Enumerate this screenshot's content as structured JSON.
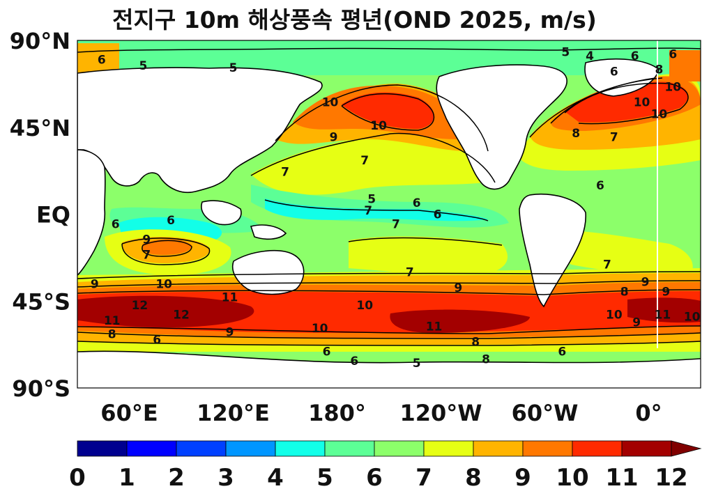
{
  "title": "전지구 10m 해상풍속 평년(OND 2025, m/s)",
  "chart_data": {
    "type": "heatmap",
    "title": "전지구 10m 해상풍속 평년(OND 2025, m/s)",
    "projection": "equirectangular",
    "lon_range": [
      30,
      390
    ],
    "lat_range": [
      -90,
      90
    ],
    "lat_tick_labels": [
      "90°N",
      "45°N",
      "EQ",
      "45°S",
      "90°S"
    ],
    "lon_tick_labels": [
      "60°E",
      "120°E",
      "180°",
      "120°W",
      "60°W",
      "0°"
    ],
    "units": "m/s",
    "colorbar": {
      "levels": [
        0,
        1,
        2,
        3,
        4,
        5,
        6,
        7,
        8,
        9,
        10,
        11,
        12
      ],
      "tick_labels": [
        "0",
        "1",
        "2",
        "3",
        "4",
        "5",
        "6",
        "7",
        "8",
        "9",
        "10",
        "11",
        "12"
      ],
      "colors": [
        "#00008f",
        "#0000ff",
        "#0040ff",
        "#0096ff",
        "#12ffe8",
        "#5cff96",
        "#8cff6a",
        "#e6ff14",
        "#ffb400",
        "#ff7800",
        "#ff2a00",
        "#a30000"
      ],
      "extend": "max",
      "extend_color": "#800000"
    },
    "contour_labels": [
      {
        "lon": 44,
        "lat": 80,
        "text": "6"
      },
      {
        "lon": 68,
        "lat": 77,
        "text": "5"
      },
      {
        "lon": 120,
        "lat": 76,
        "text": "5"
      },
      {
        "lon": 312,
        "lat": 84,
        "text": "5"
      },
      {
        "lon": 326,
        "lat": 82,
        "text": "4"
      },
      {
        "lon": 352,
        "lat": 82,
        "text": "6"
      },
      {
        "lon": 374,
        "lat": 83,
        "text": "6"
      },
      {
        "lon": 176,
        "lat": 58,
        "text": "10"
      },
      {
        "lon": 204,
        "lat": 46,
        "text": "10"
      },
      {
        "lon": 178,
        "lat": 40,
        "text": "9"
      },
      {
        "lon": 196,
        "lat": 28,
        "text": "7"
      },
      {
        "lon": 150,
        "lat": 22,
        "text": "7"
      },
      {
        "lon": 200,
        "lat": 8,
        "text": "5"
      },
      {
        "lon": 226,
        "lat": 6,
        "text": "6"
      },
      {
        "lon": 198,
        "lat": 2,
        "text": "7"
      },
      {
        "lon": 238,
        "lat": 0,
        "text": "6"
      },
      {
        "lon": 214,
        "lat": -5,
        "text": "7"
      },
      {
        "lon": 70,
        "lat": -13,
        "text": "9"
      },
      {
        "lon": 70,
        "lat": -21,
        "text": "7"
      },
      {
        "lon": 52,
        "lat": -5,
        "text": "6"
      },
      {
        "lon": 84,
        "lat": -3,
        "text": "6"
      },
      {
        "lon": 40,
        "lat": -36,
        "text": "9"
      },
      {
        "lon": 80,
        "lat": -36,
        "text": "10"
      },
      {
        "lon": 118,
        "lat": -43,
        "text": "11"
      },
      {
        "lon": 66,
        "lat": -47,
        "text": "12"
      },
      {
        "lon": 90,
        "lat": -52,
        "text": "12"
      },
      {
        "lon": 50,
        "lat": -55,
        "text": "11"
      },
      {
        "lon": 118,
        "lat": -61,
        "text": "9"
      },
      {
        "lon": 50,
        "lat": -62,
        "text": "8"
      },
      {
        "lon": 76,
        "lat": -65,
        "text": "6"
      },
      {
        "lon": 196,
        "lat": -47,
        "text": "10"
      },
      {
        "lon": 170,
        "lat": -59,
        "text": "10"
      },
      {
        "lon": 236,
        "lat": -58,
        "text": "11"
      },
      {
        "lon": 260,
        "lat": -66,
        "text": "8"
      },
      {
        "lon": 222,
        "lat": -30,
        "text": "7"
      },
      {
        "lon": 250,
        "lat": -38,
        "text": "9"
      },
      {
        "lon": 340,
        "lat": -52,
        "text": "10"
      },
      {
        "lon": 353,
        "lat": -56,
        "text": "9"
      },
      {
        "lon": 368,
        "lat": -52,
        "text": "11"
      },
      {
        "lon": 385,
        "lat": -53,
        "text": "10"
      },
      {
        "lon": 370,
        "lat": -40,
        "text": "9"
      },
      {
        "lon": 358,
        "lat": -35,
        "text": "9"
      },
      {
        "lon": 346,
        "lat": -40,
        "text": "8"
      },
      {
        "lon": 336,
        "lat": -26,
        "text": "7"
      },
      {
        "lon": 332,
        "lat": 15,
        "text": "6"
      },
      {
        "lon": 340,
        "lat": 40,
        "text": "7"
      },
      {
        "lon": 356,
        "lat": 58,
        "text": "10"
      },
      {
        "lon": 374,
        "lat": 66,
        "text": "10"
      },
      {
        "lon": 366,
        "lat": 52,
        "text": "10"
      },
      {
        "lon": 318,
        "lat": 42,
        "text": "8"
      },
      {
        "lon": 340,
        "lat": 74,
        "text": "6"
      },
      {
        "lon": 366,
        "lat": 75,
        "text": "8"
      },
      {
        "lon": 190,
        "lat": -76,
        "text": "6"
      },
      {
        "lon": 174,
        "lat": -71,
        "text": "6"
      },
      {
        "lon": 226,
        "lat": -77,
        "text": "5"
      },
      {
        "lon": 310,
        "lat": -71,
        "text": "6"
      },
      {
        "lon": 266,
        "lat": -75,
        "text": "8"
      }
    ]
  }
}
